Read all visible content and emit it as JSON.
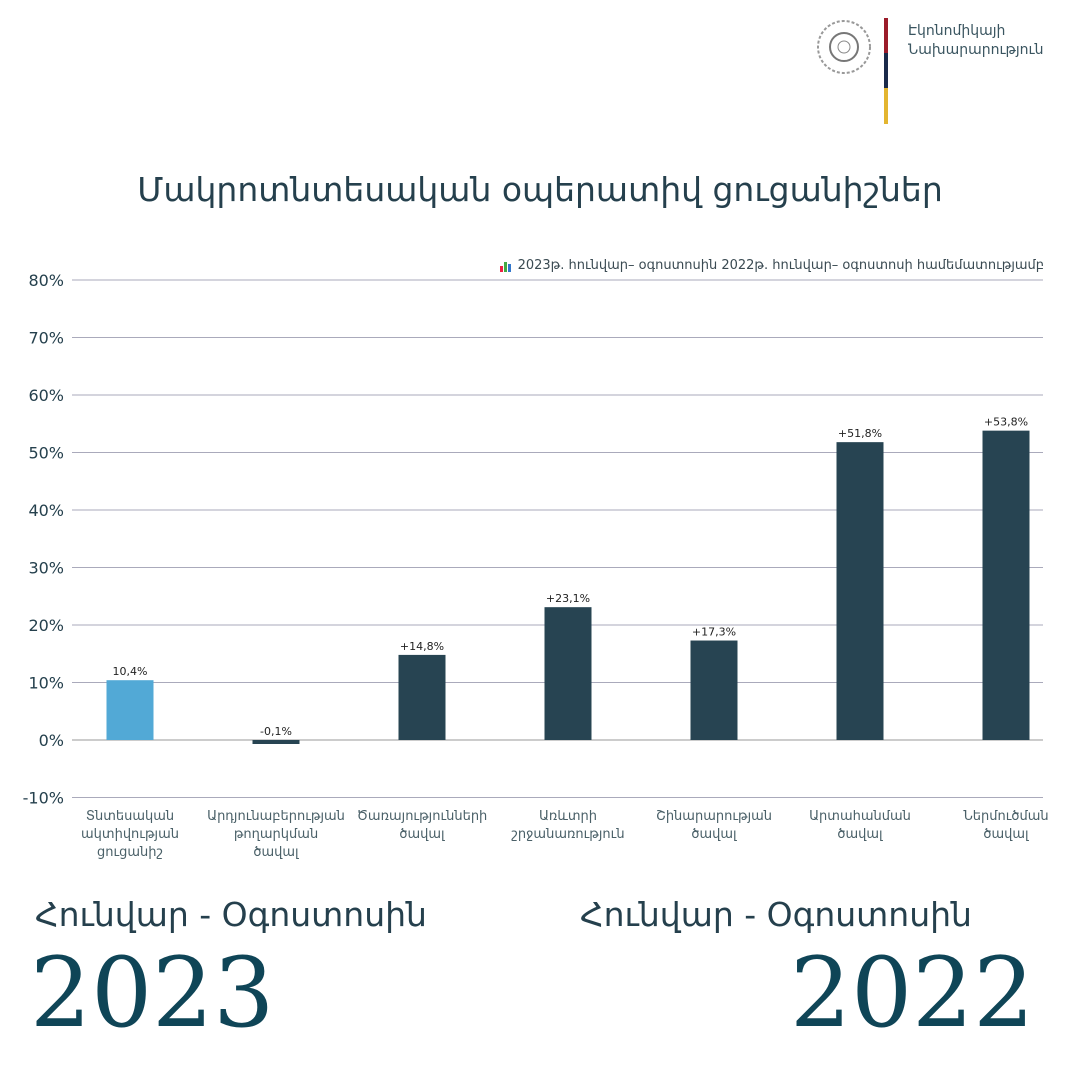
{
  "header": {
    "ministry_line1": "Էկոնոմիկայի",
    "ministry_line2": "Նախարարություն",
    "flag_colors": [
      "#9b1c2a",
      "#1a2a4a",
      "#e3b530"
    ]
  },
  "chart_data": {
    "type": "bar",
    "title": "Մակրոտնտեսական օպերատիվ ցուցանիշներ",
    "subtitle": "2023թ. հունվար– օգոստոսին 2022թ. հունվար– օգոստոսի համեմատությամբ",
    "categories": [
      "Տնտեսական ակտիվության ցուցանիշ",
      "Արդյունաբերության թողարկման ծավալ",
      "Ծառայությունների ծավալ",
      "Առևտրի շրջանառություն",
      "Շինարարության ծավալ",
      "Արտահանման ծավալ",
      "Ներմուծման ծավալ"
    ],
    "category_lines": [
      [
        "Տնտեսական",
        "ակտիվության",
        "ցուցանիշ"
      ],
      [
        "Արդյունաբերության",
        "թողարկման",
        "ծավալ"
      ],
      [
        "Ծառայությունների",
        "ծավալ"
      ],
      [
        "Առևտրի",
        "շրջանառություն"
      ],
      [
        "Շինարարության",
        "ծավալ"
      ],
      [
        "Արտահանման",
        "ծավալ"
      ],
      [
        "Ներմուծման",
        "ծավալ"
      ]
    ],
    "values": [
      10.4,
      -0.1,
      14.8,
      23.1,
      17.3,
      51.8,
      53.8
    ],
    "data_labels": [
      "10,4%",
      "-0,1%",
      "+14,8%",
      "+23,1%",
      "+17,3%",
      "+51,8%",
      "+53,8%"
    ],
    "colors": [
      "#52a9d6",
      "#274452",
      "#274452",
      "#274452",
      "#274452",
      "#274452",
      "#274452"
    ],
    "ylim": [
      -10,
      80
    ],
    "yticks": [
      -10,
      0,
      10,
      20,
      30,
      40,
      50,
      60,
      70,
      80
    ],
    "ytick_labels": [
      "-10%",
      "0%",
      "10%",
      "20%",
      "30%",
      "40%",
      "50%",
      "60%",
      "70%",
      "80%"
    ],
    "grid": true
  },
  "footer": {
    "left_period": "Հունվար - Օգոստոսին",
    "left_year": "2023",
    "right_period": "Հունվար - Օգոստոսին",
    "right_year": "2022"
  }
}
